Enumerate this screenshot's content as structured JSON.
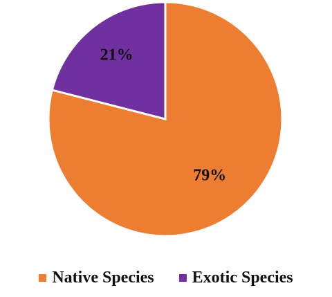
{
  "chart_data": {
    "type": "pie",
    "title": "",
    "slices": [
      {
        "label": "Native Species",
        "value": 79,
        "display": "79%",
        "color": "#ed7d31"
      },
      {
        "label": "Exotic Species",
        "value": 21,
        "display": "21%",
        "color": "#7030a0"
      }
    ],
    "legend": "bottom"
  }
}
